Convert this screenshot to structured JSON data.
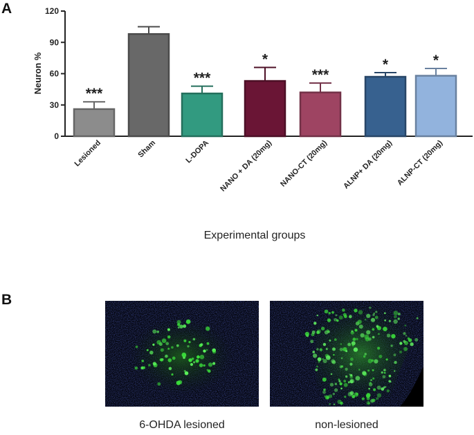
{
  "panel_a_label": "A",
  "panel_b_label": "B",
  "chart_data": {
    "type": "bar",
    "title": "",
    "ylabel": "Neuron %",
    "xlabel": "Experimental groups",
    "ylim": [
      0,
      120
    ],
    "yticks": [
      0,
      30,
      60,
      90,
      120
    ],
    "categories": [
      "Lesioned",
      "Sham",
      "L-DOPA",
      "NANO + DA (20mg)",
      "NANO-CT (20mg)",
      "ALNP+ DA (20mg)",
      "ALNP-CT (20mg)"
    ],
    "values": [
      26,
      98,
      41,
      53,
      42,
      57,
      58
    ],
    "errors": [
      7,
      7,
      7,
      13,
      9,
      4,
      7
    ],
    "significance": [
      "***",
      "",
      "***",
      "*",
      "***",
      "*",
      "*"
    ],
    "colors": [
      "#8c8c8c",
      "#686868",
      "#329a80",
      "#6a1535",
      "#9e4462",
      "#37618f",
      "#92b3dd"
    ],
    "grid": false,
    "legend": "none"
  },
  "micrographs": [
    {
      "caption": "6-OHDA lesioned"
    },
    {
      "caption": "non-lesioned"
    }
  ]
}
